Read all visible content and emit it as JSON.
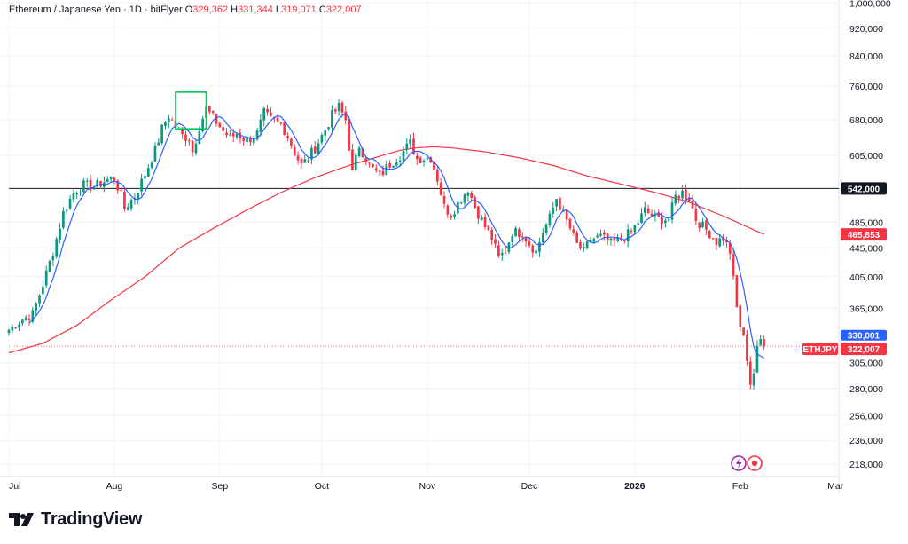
{
  "header": {
    "symbol": "Ethereum / Japanese Yen · 1D · bitFlyer",
    "open_label": "O",
    "open": "329,362",
    "high_label": "H",
    "high": "331,344",
    "low_label": "L",
    "low": "319,071",
    "close_label": "C",
    "close": "322,007"
  },
  "branding": {
    "name": "TradingView",
    "logo_icon": "tradingview-logo-icon"
  },
  "colors": {
    "up": "#089981",
    "down": "#f23645",
    "ma_fast": "#2962ff",
    "ma_slow": "#f23645",
    "hline": "#131722",
    "grid": "#f0f3fa",
    "highlight": "#00c853",
    "lastprice": "#f23645"
  },
  "chart_data": {
    "type": "candlestick",
    "title": "Ethereum / Japanese Yen · 1D · bitFlyer",
    "scale": "log",
    "ylim": [
      210000,
      1010000
    ],
    "y_ticks": [
      {
        "value": 1000000,
        "label": "1,000,000"
      },
      {
        "value": 920000,
        "label": "920,000"
      },
      {
        "value": 840000,
        "label": "840,000"
      },
      {
        "value": 760000,
        "label": "760,000"
      },
      {
        "value": 680000,
        "label": "680,000"
      },
      {
        "value": 605000,
        "label": "605,000"
      },
      {
        "value": 485000,
        "label": "485,000"
      },
      {
        "value": 445000,
        "label": "445,000"
      },
      {
        "value": 405000,
        "label": "405,000"
      },
      {
        "value": 365000,
        "label": "365,000"
      },
      {
        "value": 305000,
        "label": "305,000"
      },
      {
        "value": 280000,
        "label": "280,000"
      },
      {
        "value": 256000,
        "label": "256,000"
      },
      {
        "value": 236000,
        "label": "236,000"
      },
      {
        "value": 218000,
        "label": "218,000"
      }
    ],
    "x_ticks": [
      {
        "day": 0,
        "label": "Jul",
        "bold": false
      },
      {
        "day": 31,
        "label": "Aug",
        "bold": false
      },
      {
        "day": 62,
        "label": "Sep",
        "bold": false
      },
      {
        "day": 92,
        "label": "Oct",
        "bold": false
      },
      {
        "day": 123,
        "label": "Nov",
        "bold": false
      },
      {
        "day": 153,
        "label": "Dec",
        "bold": false
      },
      {
        "day": 184,
        "label": "2026",
        "bold": true
      },
      {
        "day": 215,
        "label": "Feb",
        "bold": false
      },
      {
        "day": 243,
        "label": "Mar",
        "bold": false
      }
    ],
    "day_range": [
      0,
      244
    ],
    "anchors": [
      [
        0,
        340000
      ],
      [
        4,
        352000
      ],
      [
        7,
        358000
      ],
      [
        10,
        395000
      ],
      [
        13,
        440000
      ],
      [
        16,
        500000
      ],
      [
        19,
        535000
      ],
      [
        22,
        548000
      ],
      [
        25,
        545000
      ],
      [
        29,
        558000
      ],
      [
        31,
        560000
      ],
      [
        33,
        530000
      ],
      [
        34,
        508000
      ],
      [
        37,
        528000
      ],
      [
        40,
        568000
      ],
      [
        43,
        615000
      ],
      [
        45,
        660000
      ],
      [
        47,
        690000
      ],
      [
        49,
        665000
      ],
      [
        51,
        645000
      ],
      [
        53,
        640000
      ],
      [
        54,
        612000
      ],
      [
        56,
        665000
      ],
      [
        58,
        705000
      ],
      [
        60,
        685000
      ],
      [
        63,
        655000
      ],
      [
        65,
        640000
      ],
      [
        67,
        650000
      ],
      [
        70,
        635000
      ],
      [
        73,
        650000
      ],
      [
        75,
        695000
      ],
      [
        77,
        680000
      ],
      [
        80,
        670000
      ],
      [
        82,
        645000
      ],
      [
        84,
        610000
      ],
      [
        86,
        585000
      ],
      [
        88,
        600000
      ],
      [
        90,
        620000
      ],
      [
        93,
        658000
      ],
      [
        95,
        690000
      ],
      [
        97,
        710000
      ],
      [
        99,
        680000
      ],
      [
        101,
        570000
      ],
      [
        103,
        625000
      ],
      [
        106,
        585000
      ],
      [
        109,
        565000
      ],
      [
        112,
        588000
      ],
      [
        115,
        605000
      ],
      [
        118,
        630000
      ],
      [
        120,
        598000
      ],
      [
        124,
        600000
      ],
      [
        126,
        560000
      ],
      [
        128,
        510000
      ],
      [
        130,
        498000
      ],
      [
        133,
        525000
      ],
      [
        135,
        542000
      ],
      [
        137,
        510000
      ],
      [
        140,
        478000
      ],
      [
        142,
        460000
      ],
      [
        144,
        430000
      ],
      [
        146,
        442000
      ],
      [
        148,
        470000
      ],
      [
        151,
        468000
      ],
      [
        153,
        452000
      ],
      [
        155,
        440000
      ],
      [
        157,
        470000
      ],
      [
        159,
        492000
      ],
      [
        161,
        525000
      ],
      [
        163,
        498000
      ],
      [
        165,
        475000
      ],
      [
        167,
        450000
      ],
      [
        169,
        440000
      ],
      [
        171,
        458000
      ],
      [
        174,
        462000
      ],
      [
        177,
        452000
      ],
      [
        180,
        458000
      ],
      [
        183,
        470000
      ],
      [
        185,
        485000
      ],
      [
        187,
        505000
      ],
      [
        189,
        495000
      ],
      [
        191,
        490000
      ],
      [
        194,
        490000
      ],
      [
        196,
        528000
      ],
      [
        198,
        535000
      ],
      [
        200,
        525000
      ],
      [
        202,
        490000
      ],
      [
        204,
        478000
      ],
      [
        206,
        468000
      ],
      [
        208,
        455000
      ],
      [
        210,
        460000
      ],
      [
        212,
        440000
      ],
      [
        213,
        400000
      ],
      [
        214,
        365000
      ],
      [
        215,
        345000
      ],
      [
        216,
        330000
      ],
      [
        217,
        310000
      ],
      [
        218,
        285000
      ],
      [
        219,
        295000
      ],
      [
        220,
        318000
      ],
      [
        221,
        329000
      ],
      [
        222,
        322007
      ]
    ],
    "series": [
      {
        "name": "ETHJPY",
        "type": "candles"
      },
      {
        "name": "MA fast",
        "type": "line",
        "lag": 3
      },
      {
        "name": "MA slow",
        "type": "line",
        "points": [
          [
            0,
            315000
          ],
          [
            10,
            325000
          ],
          [
            20,
            345000
          ],
          [
            30,
            375000
          ],
          [
            40,
            405000
          ],
          [
            50,
            445000
          ],
          [
            60,
            475000
          ],
          [
            70,
            505000
          ],
          [
            80,
            535000
          ],
          [
            90,
            562000
          ],
          [
            100,
            585000
          ],
          [
            110,
            605000
          ],
          [
            115,
            615000
          ],
          [
            120,
            620000
          ],
          [
            125,
            622000
          ],
          [
            130,
            620000
          ],
          [
            140,
            612000
          ],
          [
            150,
            600000
          ],
          [
            160,
            585000
          ],
          [
            170,
            565000
          ],
          [
            180,
            550000
          ],
          [
            190,
            535000
          ],
          [
            200,
            518000
          ],
          [
            210,
            495000
          ],
          [
            222,
            465853
          ]
        ]
      }
    ],
    "horizontal_line": {
      "value": 542000,
      "label": "542,000"
    },
    "price_tags": [
      {
        "name": "ma-slow-tag",
        "value": 465853,
        "label": "465,853",
        "color": "#f23645"
      },
      {
        "name": "ma-fast-tag",
        "value": 330001,
        "label": "330,001",
        "color": "#2962ff"
      },
      {
        "name": "last-price-tag",
        "value": 322007,
        "label": "322,007",
        "color": "#f23645"
      }
    ],
    "symbol_tag": {
      "label": "ETHJPY"
    },
    "annotation": {
      "type": "rectangle",
      "day_from": 49,
      "day_to": 58,
      "price_from": 660000,
      "price_to": 745000
    }
  }
}
